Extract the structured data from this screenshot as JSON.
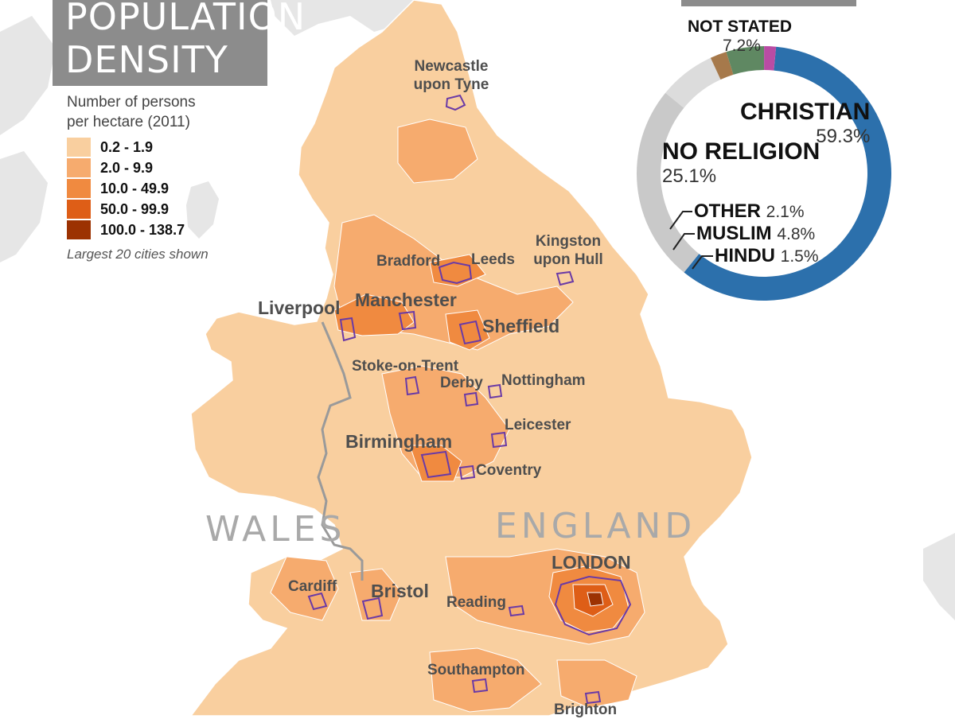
{
  "title": {
    "line1": "POPULATION",
    "line2": "DENSITY"
  },
  "legend": {
    "description_line1": "Number of persons",
    "description_line2": "per hectare (2011)",
    "classes": [
      {
        "label": "0.2 - 1.9",
        "color": "#f9cf9f"
      },
      {
        "label": "2.0 - 9.9",
        "color": "#f6ab6e"
      },
      {
        "label": "10.0 - 49.9",
        "color": "#f08a40"
      },
      {
        "label": "50.0 - 99.9",
        "color": "#de5e17"
      },
      {
        "label": "100.0 - 138.7",
        "color": "#9c3202"
      }
    ],
    "note": "Largest 20 cities shown"
  },
  "regions": {
    "wales": "WALES",
    "england": "ENGLAND"
  },
  "cities": {
    "newcastle_line1": "Newcastle",
    "newcastle_line2": "upon Tyne",
    "bradford": "Bradford",
    "leeds": "Leeds",
    "hull_line1": "Kingston",
    "hull_line2": "upon Hull",
    "liverpool": "Liverpool",
    "manchester": "Manchester",
    "sheffield": "Sheffield",
    "stoke": "Stoke-on-Trent",
    "derby": "Derby",
    "nottingham": "Nottingham",
    "leicester": "Leicester",
    "birmingham": "Birmingham",
    "coventry": "Coventry",
    "cardiff": "Cardiff",
    "bristol": "Bristol",
    "reading": "Reading",
    "london": "LONDON",
    "southampton": "Southampton",
    "brighton": "Brighton"
  },
  "religion": {
    "segments": [
      {
        "name": "CHRISTIAN",
        "percent": 59.3,
        "percent_label": "59.3%",
        "color": "#2c70ac"
      },
      {
        "name": "NO RELIGION",
        "percent": 25.1,
        "percent_label": "25.1%",
        "color": "#c9c9c9"
      },
      {
        "name": "NOT STATED",
        "percent": 7.2,
        "percent_label": "7.2%",
        "color": "#dcdcdc"
      },
      {
        "name": "OTHER",
        "percent": 2.1,
        "percent_label": "2.1%",
        "color": "#a6794b"
      },
      {
        "name": "MUSLIM",
        "percent": 4.8,
        "percent_label": "4.8%",
        "color": "#5f8862"
      },
      {
        "name": "HINDU",
        "percent": 1.5,
        "percent_label": "1.5%",
        "color": "#b94ca4"
      }
    ]
  },
  "colors": {
    "sea": "#ffffff",
    "neighbour_land": "#e6e6e6",
    "city_outline": "#6a3aa6",
    "wales_border": "#9a9a9a",
    "district_lines": "#ffffff"
  }
}
